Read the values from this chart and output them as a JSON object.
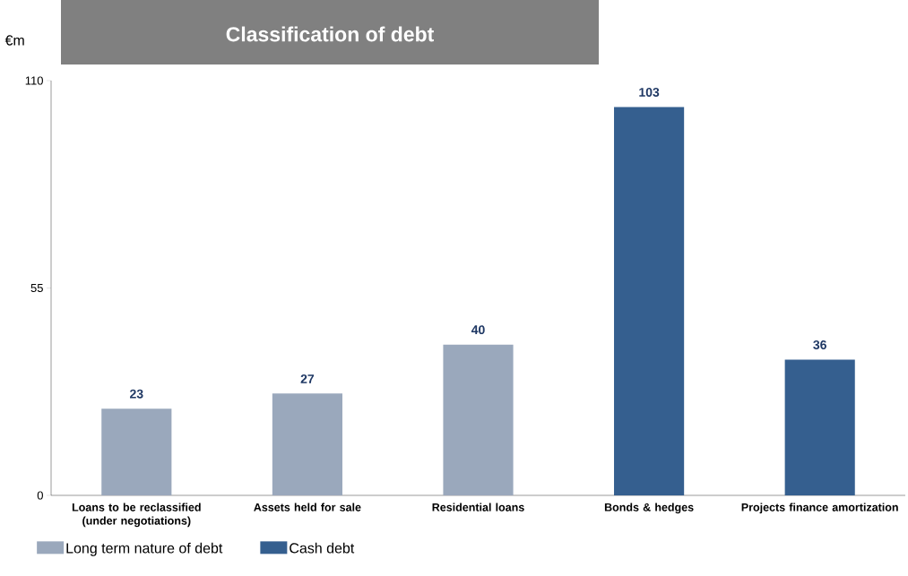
{
  "chart_data": {
    "type": "bar",
    "title": "Classification of debt",
    "ylabel": "€m",
    "categories": [
      "Loans to be reclassified (under negotiations)",
      "Assets held for sale",
      "Residential loans",
      "Bonds & hedges",
      "Projects finance amortization"
    ],
    "series": [
      {
        "name": "Long term nature of debt",
        "color": "#9aa8bc",
        "values": [
          23,
          27,
          40,
          null,
          null
        ]
      },
      {
        "name": "Cash debt",
        "color": "#355f8f",
        "values": [
          null,
          null,
          null,
          103,
          36
        ]
      }
    ],
    "ylim": [
      0,
      110
    ],
    "yticks": [
      0,
      55,
      110
    ],
    "data_labels": true,
    "grid": false,
    "legend": "bottom left"
  }
}
